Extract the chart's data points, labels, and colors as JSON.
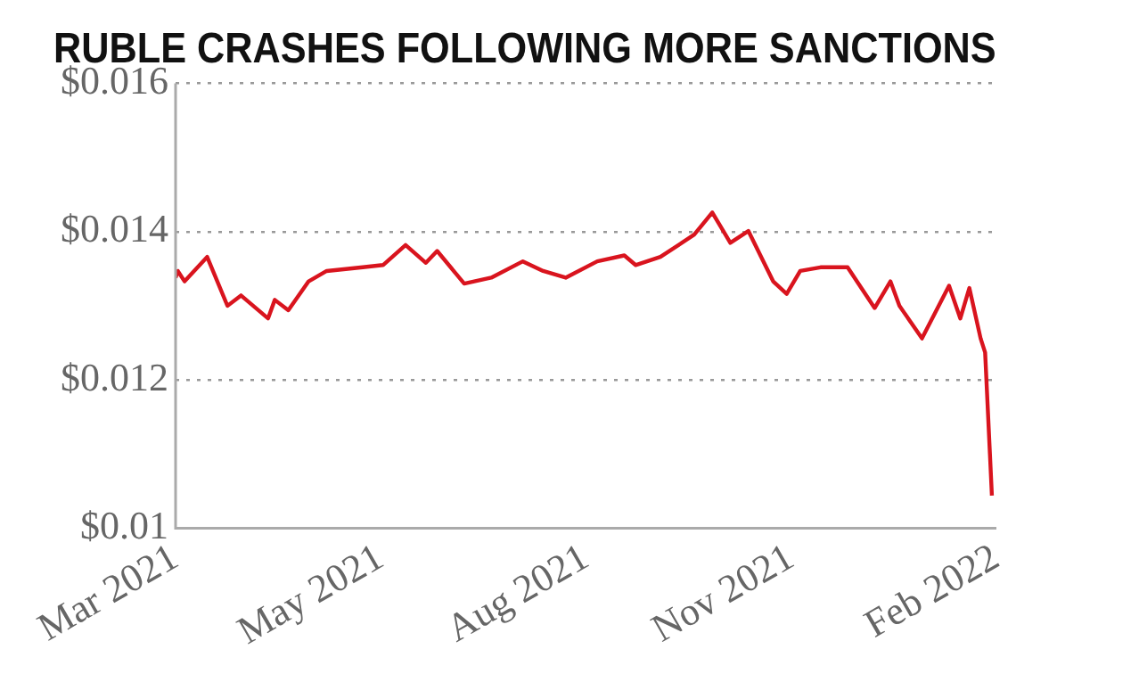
{
  "chart_data": {
    "type": "line",
    "title": "RUBLE CRASHES FOLLOWING MORE SANCTIONS",
    "x": [
      "2021-03-01",
      "2021-03-02",
      "2021-03-05",
      "2021-03-15",
      "2021-03-24",
      "2021-03-30",
      "2021-04-11",
      "2021-04-14",
      "2021-04-20",
      "2021-04-29",
      "2021-05-07",
      "2021-05-23",
      "2021-06-01",
      "2021-06-11",
      "2021-06-20",
      "2021-06-25",
      "2021-07-07",
      "2021-07-19",
      "2021-08-02",
      "2021-08-11",
      "2021-08-21",
      "2021-09-04",
      "2021-09-16",
      "2021-09-21",
      "2021-10-02",
      "2021-10-17",
      "2021-10-25",
      "2021-11-02",
      "2021-11-10",
      "2021-11-21",
      "2021-11-27",
      "2021-12-03",
      "2021-12-12",
      "2021-12-24",
      "2022-01-05",
      "2022-01-12",
      "2022-01-16",
      "2022-01-26",
      "2022-02-07",
      "2022-02-12",
      "2022-02-16",
      "2022-02-21",
      "2022-02-23",
      "2022-02-26"
    ],
    "series": [
      {
        "color": "#d9141e",
        "values": [
          0.01338,
          0.01347,
          0.01333,
          0.01366,
          0.013,
          0.01314,
          0.01283,
          0.01308,
          0.01294,
          0.01333,
          0.01347,
          0.01352,
          0.01355,
          0.01382,
          0.01358,
          0.01374,
          0.0133,
          0.01338,
          0.0136,
          0.01347,
          0.01338,
          0.0136,
          0.01368,
          0.01355,
          0.01366,
          0.01396,
          0.01426,
          0.01385,
          0.01401,
          0.01333,
          0.01316,
          0.01347,
          0.01352,
          0.01352,
          0.01297,
          0.01333,
          0.013,
          0.01256,
          0.01327,
          0.01283,
          0.01324,
          0.01256,
          0.01237,
          0.01044
        ]
      }
    ],
    "xlim": [
      "2021-03-01",
      "2022-02-28"
    ],
    "xticks": [
      {
        "value": "2021-03-01",
        "label": "Mar 2021"
      },
      {
        "value": "2021-05-31",
        "label": "May 2021"
      },
      {
        "value": "2021-08-30",
        "label": "Aug 2021"
      },
      {
        "value": "2021-11-29",
        "label": "Nov 2021"
      },
      {
        "value": "2022-02-28",
        "label": "Feb 2022"
      }
    ],
    "ylim": [
      0.01,
      0.016
    ],
    "yticks": [
      {
        "value": 0.01,
        "label": "$0.01"
      },
      {
        "value": 0.012,
        "label": "$0.012"
      },
      {
        "value": 0.014,
        "label": "$0.014"
      },
      {
        "value": 0.016,
        "label": "$0.016"
      }
    ],
    "grid": "y",
    "legend": false,
    "marker": "none",
    "line_style": "solid"
  }
}
